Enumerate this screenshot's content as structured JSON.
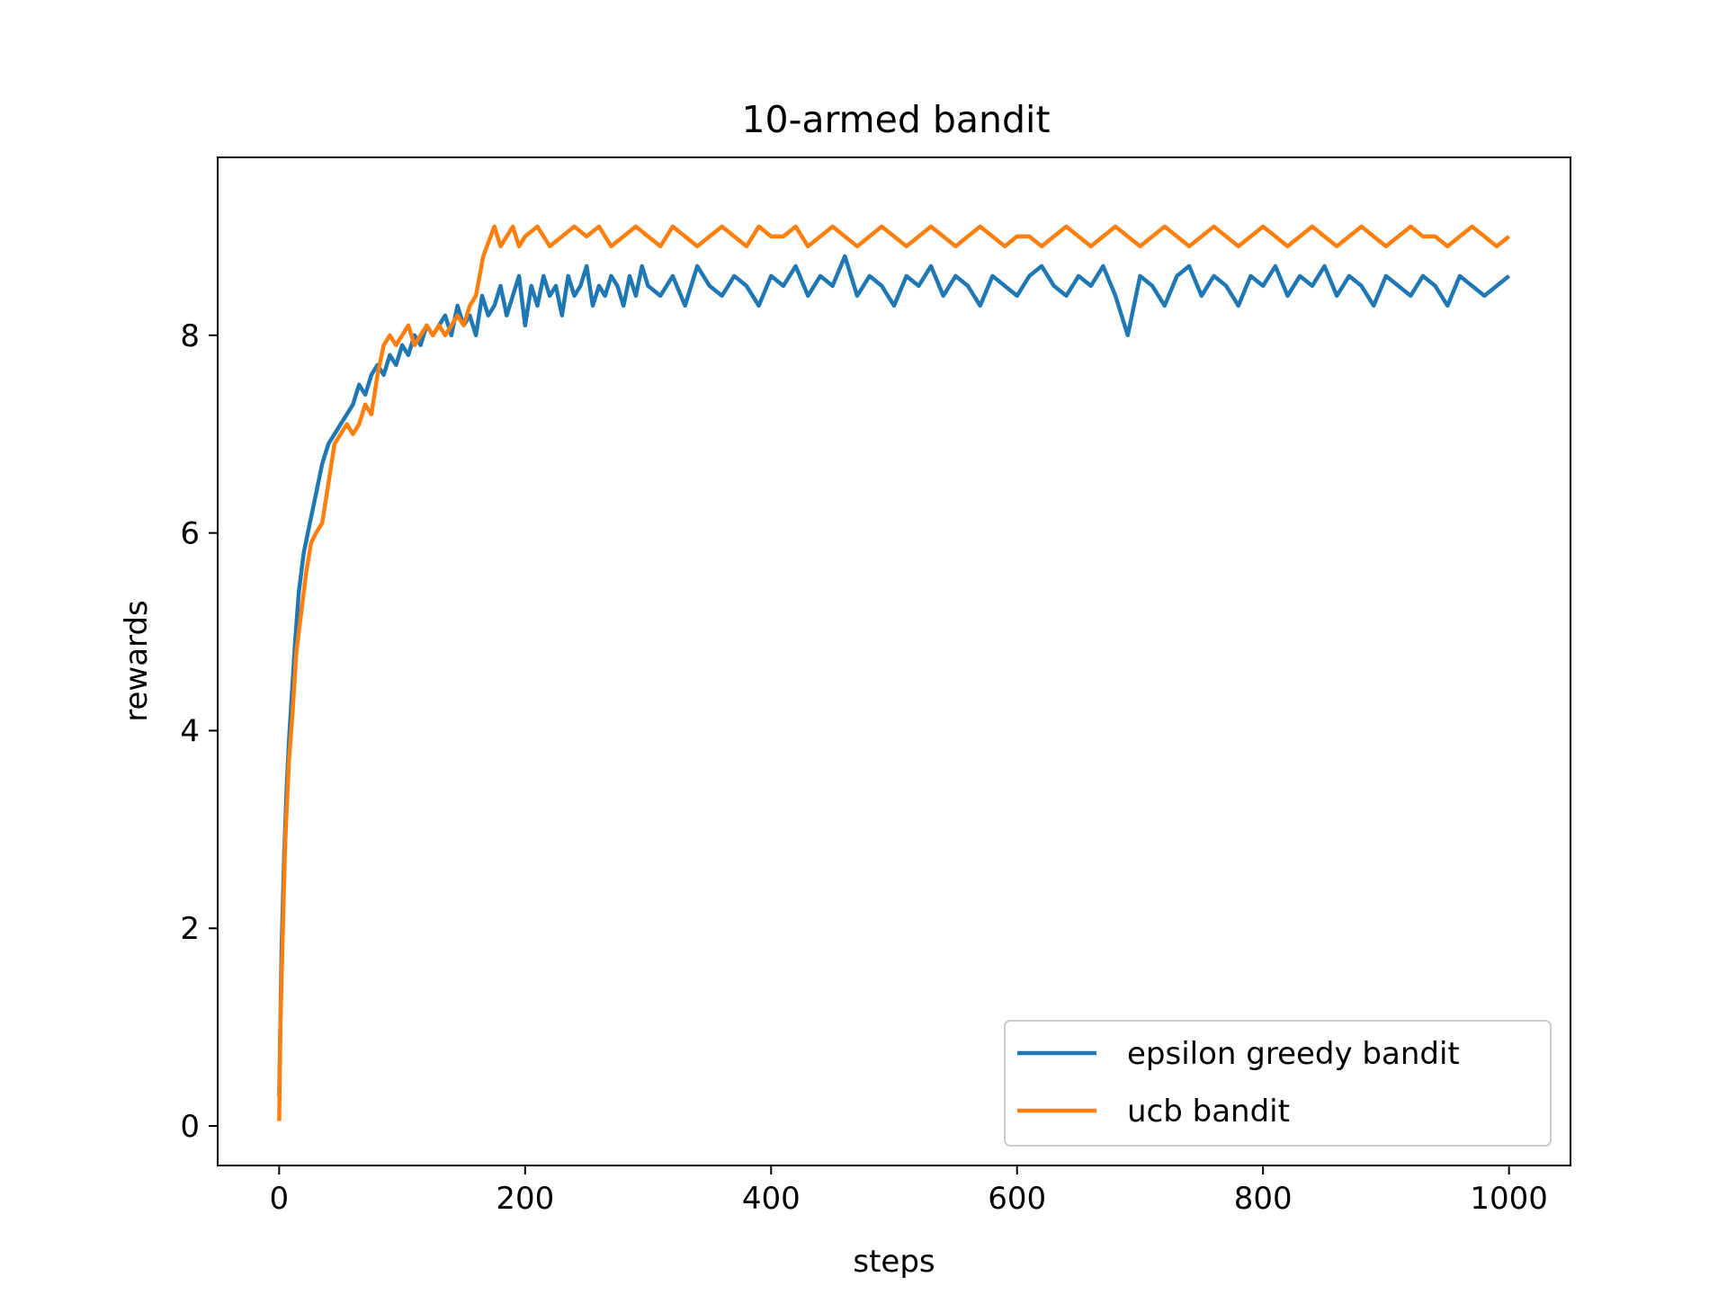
{
  "chart_data": {
    "type": "line",
    "title": "10-armed bandit",
    "xlabel": "steps",
    "ylabel": "rewards",
    "xlim": [
      -50,
      1050
    ],
    "ylim": [
      -0.4,
      9.8
    ],
    "xticks": [
      0,
      200,
      400,
      600,
      800,
      1000
    ],
    "yticks": [
      0,
      2,
      4,
      6,
      8
    ],
    "legend_position": "lower-right",
    "grid": false,
    "series": [
      {
        "name": "epsilon greedy bandit",
        "color": "#1f77b4",
        "x": [
          0,
          2,
          4,
          6,
          8,
          10,
          13,
          16,
          20,
          25,
          30,
          35,
          40,
          45,
          50,
          55,
          60,
          65,
          70,
          75,
          80,
          85,
          90,
          95,
          100,
          105,
          110,
          115,
          120,
          125,
          130,
          135,
          140,
          145,
          150,
          155,
          160,
          165,
          170,
          175,
          180,
          185,
          190,
          195,
          200,
          205,
          210,
          215,
          220,
          225,
          230,
          235,
          240,
          245,
          250,
          255,
          260,
          265,
          270,
          275,
          280,
          285,
          290,
          295,
          300,
          310,
          320,
          330,
          340,
          350,
          360,
          370,
          380,
          390,
          400,
          410,
          420,
          430,
          440,
          450,
          460,
          470,
          480,
          490,
          500,
          510,
          520,
          530,
          540,
          550,
          560,
          570,
          580,
          590,
          600,
          610,
          620,
          630,
          640,
          650,
          660,
          670,
          680,
          690,
          700,
          710,
          720,
          730,
          740,
          750,
          760,
          770,
          780,
          790,
          800,
          810,
          820,
          830,
          840,
          850,
          860,
          870,
          880,
          890,
          900,
          910,
          920,
          930,
          940,
          950,
          960,
          970,
          980,
          990,
          1000
        ],
        "values": [
          0.3,
          1.8,
          2.7,
          3.4,
          3.9,
          4.3,
          4.9,
          5.4,
          5.8,
          6.1,
          6.4,
          6.7,
          6.9,
          7.0,
          7.1,
          7.2,
          7.3,
          7.5,
          7.4,
          7.6,
          7.7,
          7.6,
          7.8,
          7.7,
          7.9,
          7.8,
          8.0,
          7.9,
          8.1,
          8.0,
          8.1,
          8.2,
          8.0,
          8.3,
          8.1,
          8.2,
          8.0,
          8.4,
          8.2,
          8.3,
          8.5,
          8.2,
          8.4,
          8.6,
          8.1,
          8.5,
          8.3,
          8.6,
          8.4,
          8.5,
          8.2,
          8.6,
          8.4,
          8.5,
          8.7,
          8.3,
          8.5,
          8.4,
          8.6,
          8.5,
          8.3,
          8.6,
          8.4,
          8.7,
          8.5,
          8.4,
          8.6,
          8.3,
          8.7,
          8.5,
          8.4,
          8.6,
          8.5,
          8.3,
          8.6,
          8.5,
          8.7,
          8.4,
          8.6,
          8.5,
          8.8,
          8.4,
          8.6,
          8.5,
          8.3,
          8.6,
          8.5,
          8.7,
          8.4,
          8.6,
          8.5,
          8.3,
          8.6,
          8.5,
          8.4,
          8.6,
          8.7,
          8.5,
          8.4,
          8.6,
          8.5,
          8.7,
          8.4,
          8.0,
          8.6,
          8.5,
          8.3,
          8.6,
          8.7,
          8.4,
          8.6,
          8.5,
          8.3,
          8.6,
          8.5,
          8.7,
          8.4,
          8.6,
          8.5,
          8.7,
          8.4,
          8.6,
          8.5,
          8.3,
          8.6,
          8.5,
          8.4,
          8.6,
          8.5,
          8.3,
          8.6,
          8.5,
          8.4,
          8.5,
          8.6
        ]
      },
      {
        "name": "ucb bandit",
        "color": "#ff7f0e",
        "x": [
          0,
          1,
          3,
          5,
          8,
          11,
          14,
          18,
          22,
          26,
          30,
          35,
          40,
          45,
          50,
          55,
          60,
          65,
          70,
          75,
          80,
          85,
          90,
          95,
          100,
          105,
          110,
          115,
          120,
          125,
          130,
          135,
          140,
          145,
          150,
          155,
          160,
          163,
          166,
          169,
          172,
          175,
          180,
          185,
          190,
          195,
          200,
          210,
          220,
          230,
          240,
          250,
          260,
          270,
          280,
          290,
          300,
          310,
          320,
          330,
          340,
          350,
          360,
          370,
          380,
          390,
          400,
          410,
          420,
          430,
          440,
          450,
          460,
          470,
          480,
          490,
          500,
          510,
          520,
          530,
          540,
          550,
          560,
          570,
          580,
          590,
          600,
          610,
          620,
          630,
          640,
          650,
          660,
          670,
          680,
          690,
          700,
          710,
          720,
          730,
          740,
          750,
          760,
          770,
          780,
          790,
          800,
          810,
          820,
          830,
          840,
          850,
          860,
          870,
          880,
          890,
          900,
          910,
          920,
          930,
          940,
          950,
          960,
          970,
          980,
          990,
          1000
        ],
        "values": [
          0.05,
          1.0,
          2.0,
          2.9,
          3.7,
          4.2,
          4.8,
          5.2,
          5.6,
          5.9,
          6.0,
          6.1,
          6.5,
          6.9,
          7.0,
          7.1,
          7.0,
          7.1,
          7.3,
          7.2,
          7.6,
          7.9,
          8.0,
          7.9,
          8.0,
          8.1,
          7.9,
          8.0,
          8.1,
          8.0,
          8.1,
          8.0,
          8.1,
          8.2,
          8.1,
          8.3,
          8.4,
          8.6,
          8.8,
          8.9,
          9.0,
          9.1,
          8.9,
          9.0,
          9.1,
          8.9,
          9.0,
          9.1,
          8.9,
          9.0,
          9.1,
          9.0,
          9.1,
          8.9,
          9.0,
          9.1,
          9.0,
          8.9,
          9.1,
          9.0,
          8.9,
          9.0,
          9.1,
          9.0,
          8.9,
          9.1,
          9.0,
          9.0,
          9.1,
          8.9,
          9.0,
          9.1,
          9.0,
          8.9,
          9.0,
          9.1,
          9.0,
          8.9,
          9.0,
          9.1,
          9.0,
          8.9,
          9.0,
          9.1,
          9.0,
          8.9,
          9.0,
          9.0,
          8.9,
          9.0,
          9.1,
          9.0,
          8.9,
          9.0,
          9.1,
          9.0,
          8.9,
          9.0,
          9.1,
          9.0,
          8.9,
          9.0,
          9.1,
          9.0,
          8.9,
          9.0,
          9.1,
          9.0,
          8.9,
          9.0,
          9.1,
          9.0,
          8.9,
          9.0,
          9.1,
          9.0,
          8.9,
          9.0,
          9.1,
          9.0,
          9.0,
          8.9,
          9.0,
          9.1,
          9.0,
          8.9,
          9.0
        ]
      }
    ]
  }
}
